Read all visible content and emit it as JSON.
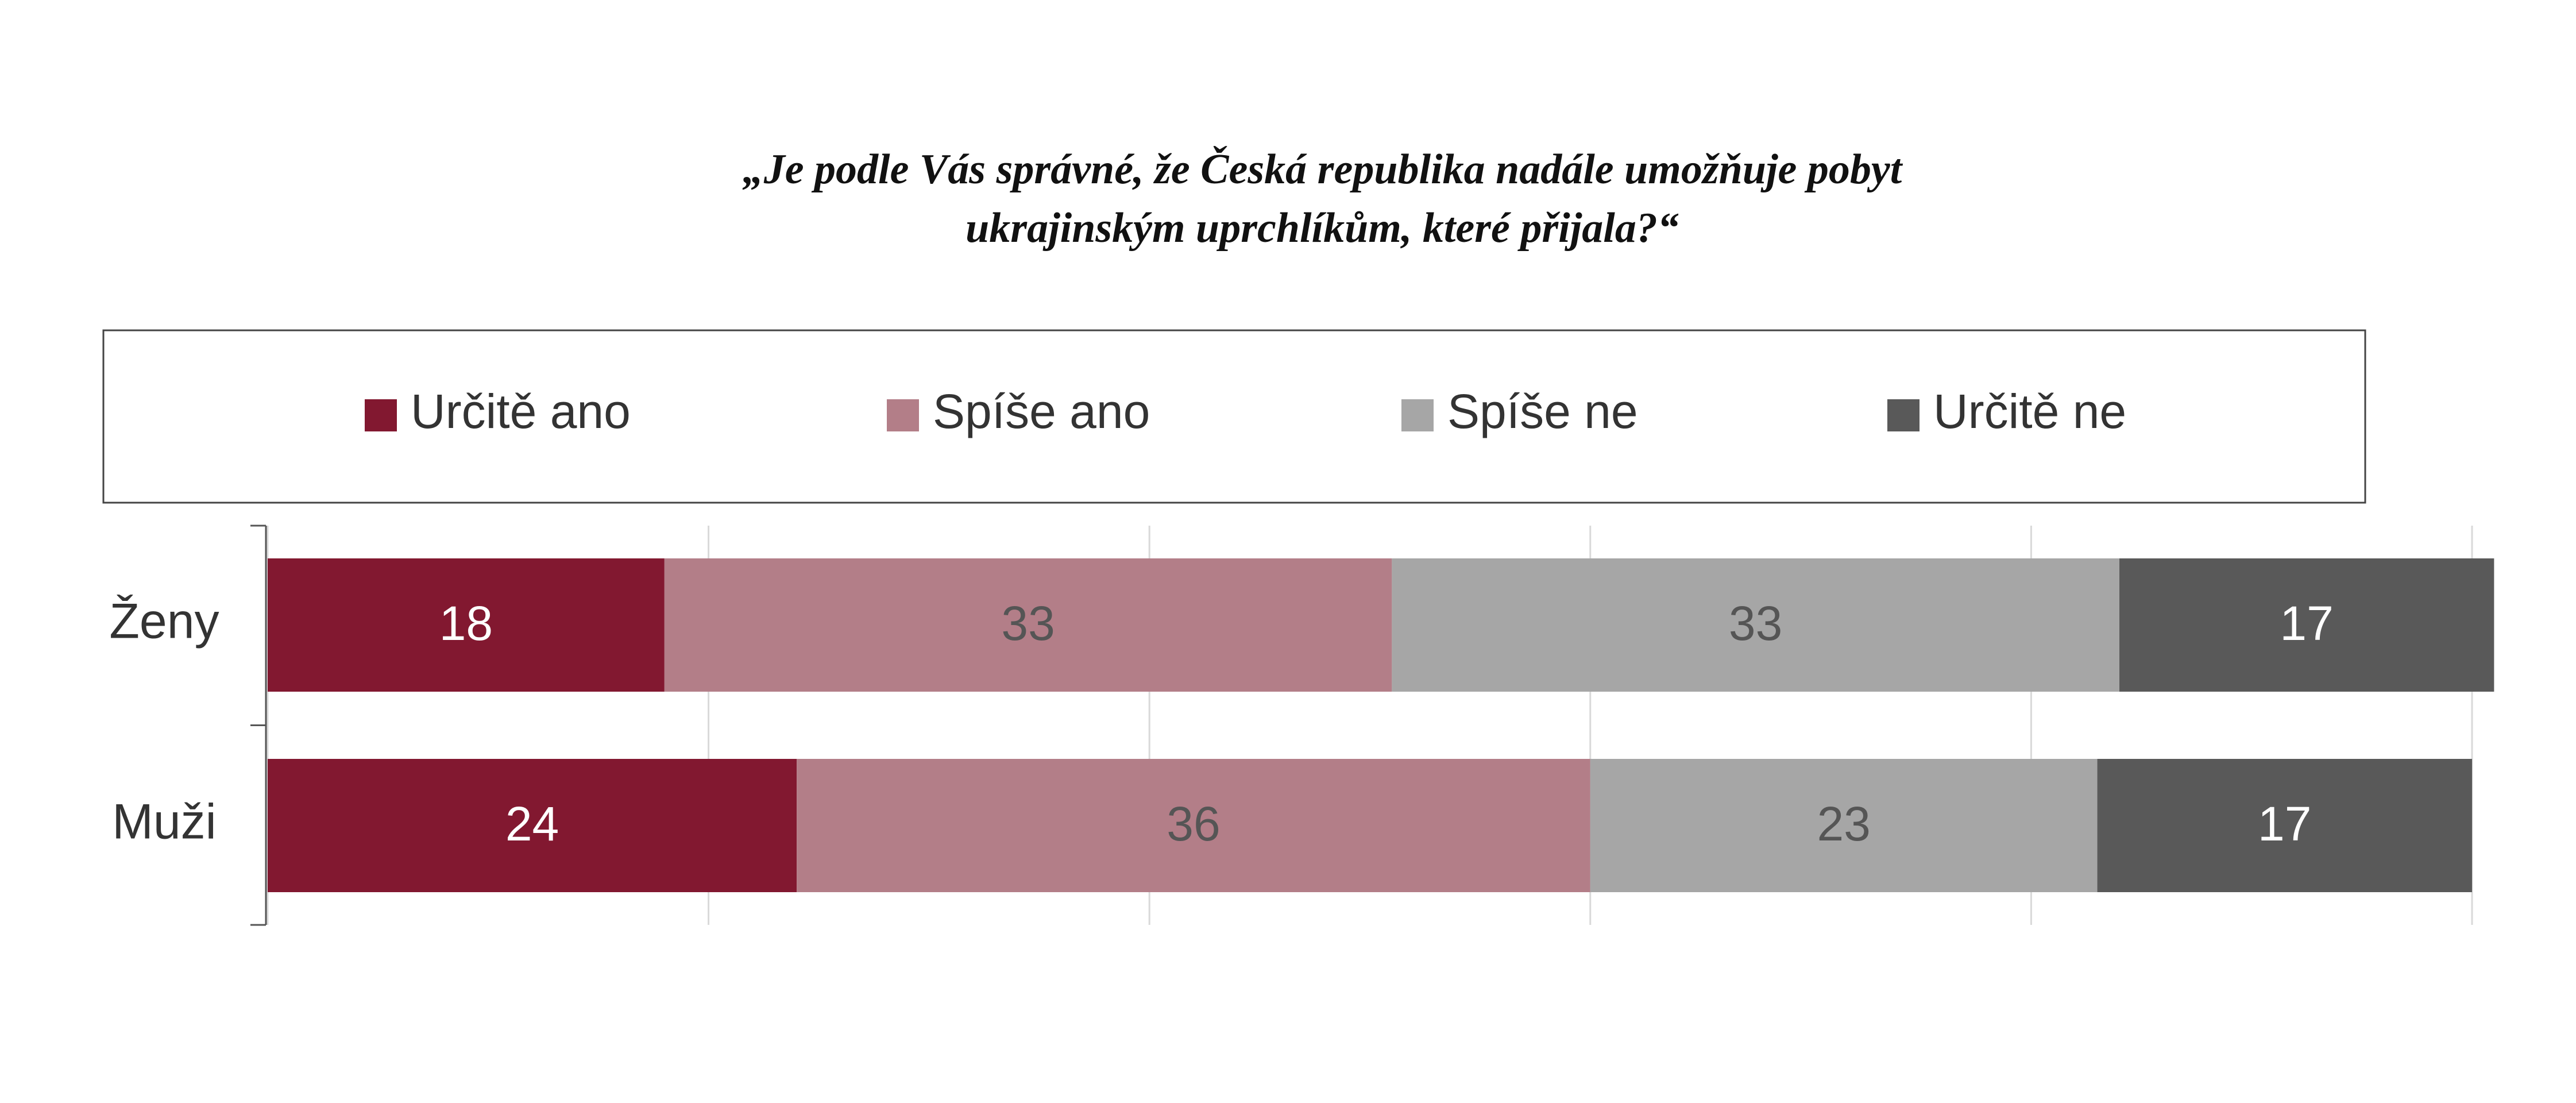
{
  "chart_data": {
    "type": "stacked-barh",
    "title": [
      "„Je podle Vás správné, že Česká republika nadále umožňuje pobyt",
      "ukrajinským uprchlíkům, které přijala?“"
    ],
    "categories": [
      "Ženy",
      "Muži"
    ],
    "series": [
      {
        "name": "Určitě ano",
        "color": "#821830",
        "label_color": "#ffffff",
        "values": [
          18,
          24
        ]
      },
      {
        "name": "Spíše ano",
        "color": "#b37e88",
        "label_color": "#555555",
        "values": [
          33,
          36
        ]
      },
      {
        "name": "Spíše ne",
        "color": "#a6a6a6",
        "label_color": "#555555",
        "values": [
          33,
          23
        ]
      },
      {
        "name": "Určitě ne",
        "color": "#595959",
        "label_color": "#ffffff",
        "values": [
          17,
          17
        ]
      }
    ],
    "xlim": [
      0,
      100
    ],
    "xticks": [
      0,
      20,
      40,
      60,
      80,
      100
    ],
    "grid": true,
    "legend": "top"
  }
}
